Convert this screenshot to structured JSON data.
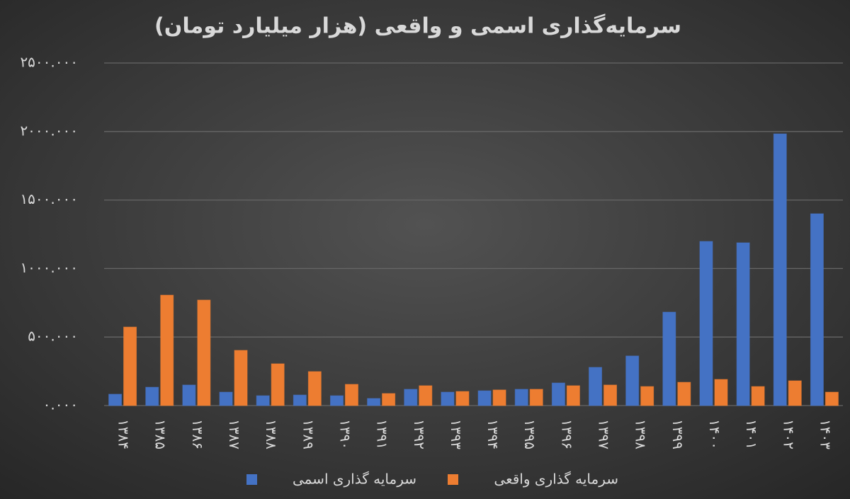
{
  "chart_data": {
    "type": "bar",
    "title": "سرمایه‌گذاری اسمی و واقعی (هزار میلیارد تومان)",
    "categories": [
      "۱۳۸۴",
      "۱۳۸۵",
      "۱۳۸۶",
      "۱۳۸۷",
      "۱۳۸۸",
      "۱۳۸۹",
      "۱۳۹۰",
      "۱۳۹۱",
      "۱۳۹۲",
      "۱۳۹۳",
      "۱۳۹۴",
      "۱۳۹۵",
      "۱۳۹۶",
      "۱۳۹۷",
      "۱۳۹۸",
      "۱۳۹۹",
      "۱۴۰۰",
      "۱۴۰۱",
      "۱۴۰۲",
      "۱۴۰۳"
    ],
    "series": [
      {
        "name": "سرمایه گذاری اسمی",
        "color": "#4472c4",
        "values": [
          83,
          134,
          150,
          98,
          72,
          77,
          72,
          52,
          119,
          98,
          108,
          119,
          165,
          279,
          362,
          682,
          1198,
          1188,
          1983,
          1400
        ]
      },
      {
        "name": "سرمایه گذاری واقعی",
        "color": "#ed7d31",
        "values": [
          573,
          806,
          770,
          403,
          305,
          248,
          155,
          88,
          145,
          103,
          114,
          119,
          145,
          150,
          139,
          170,
          191,
          139,
          181,
          98
        ]
      }
    ],
    "ylim": [
      0,
      2500
    ],
    "yticks": [
      {
        "value": 0,
        "label": "۰.۰۰۰"
      },
      {
        "value": 500,
        "label": "۵۰۰.۰۰۰"
      },
      {
        "value": 1000,
        "label": "۱۰۰۰.۰۰۰"
      },
      {
        "value": 1500,
        "label": "۱۵۰۰.۰۰۰"
      },
      {
        "value": 2000,
        "label": "۲۰۰۰.۰۰۰"
      },
      {
        "value": 2500,
        "label": "۲۵۰۰.۰۰۰"
      }
    ],
    "grid": true
  }
}
